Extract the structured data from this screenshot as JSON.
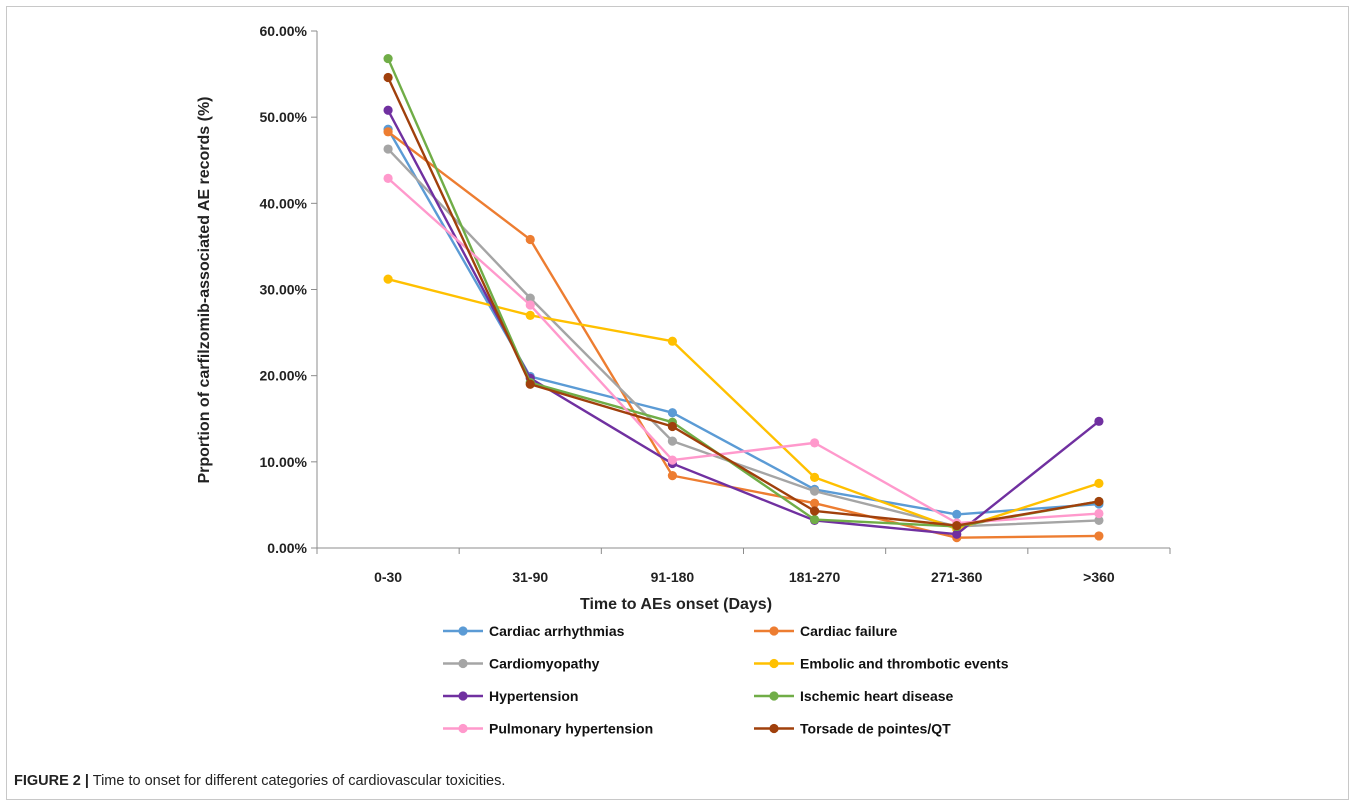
{
  "caption": {
    "label": "FIGURE 2 |",
    "text": "Time to onset for different categories of cardiovascular toxicities."
  },
  "chart_data": {
    "type": "line",
    "title": "",
    "xlabel": "Time to AEs onset (Days)",
    "ylabel": "Prportion of carfilzomib-associated AE records (%)",
    "categories": [
      "0-30",
      "31-90",
      "91-180",
      "181-270",
      "271-360",
      ">360"
    ],
    "ylim": [
      0,
      60
    ],
    "yticks": [
      "0.00%",
      "10.00%",
      "20.00%",
      "30.00%",
      "40.00%",
      "50.00%",
      "60.00%"
    ],
    "grid": false,
    "legend_position": "bottom",
    "series": [
      {
        "name": "Cardiac arrhythmias",
        "color": "#5b9bd5",
        "values": [
          48.6,
          19.9,
          15.7,
          6.8,
          3.9,
          5.1
        ]
      },
      {
        "name": "Cardiac failure",
        "color": "#ed7d31",
        "values": [
          48.3,
          35.8,
          8.4,
          5.2,
          1.2,
          1.4
        ]
      },
      {
        "name": "Cardiomyopathy",
        "color": "#a5a5a5",
        "values": [
          46.3,
          29.0,
          12.4,
          6.6,
          2.5,
          3.2
        ]
      },
      {
        "name": "Embolic and thrombotic events",
        "color": "#ffc000",
        "values": [
          31.2,
          27.0,
          24.0,
          8.2,
          2.2,
          7.5
        ]
      },
      {
        "name": "Hypertension",
        "color": "#7030a0",
        "values": [
          50.8,
          19.7,
          9.8,
          3.2,
          1.6,
          14.7
        ]
      },
      {
        "name": "Ischemic heart disease",
        "color": "#70ad47",
        "values": [
          56.8,
          19.2,
          14.6,
          3.3,
          2.5,
          5.4
        ]
      },
      {
        "name": "Pulmonary hypertension",
        "color": "#ff99cc",
        "values": [
          42.9,
          28.2,
          10.2,
          12.2,
          2.9,
          4.0
        ]
      },
      {
        "name": "Torsade de pointes/QT",
        "color": "#a0400c",
        "values": [
          54.6,
          19.0,
          14.1,
          4.3,
          2.6,
          5.4
        ]
      }
    ]
  }
}
